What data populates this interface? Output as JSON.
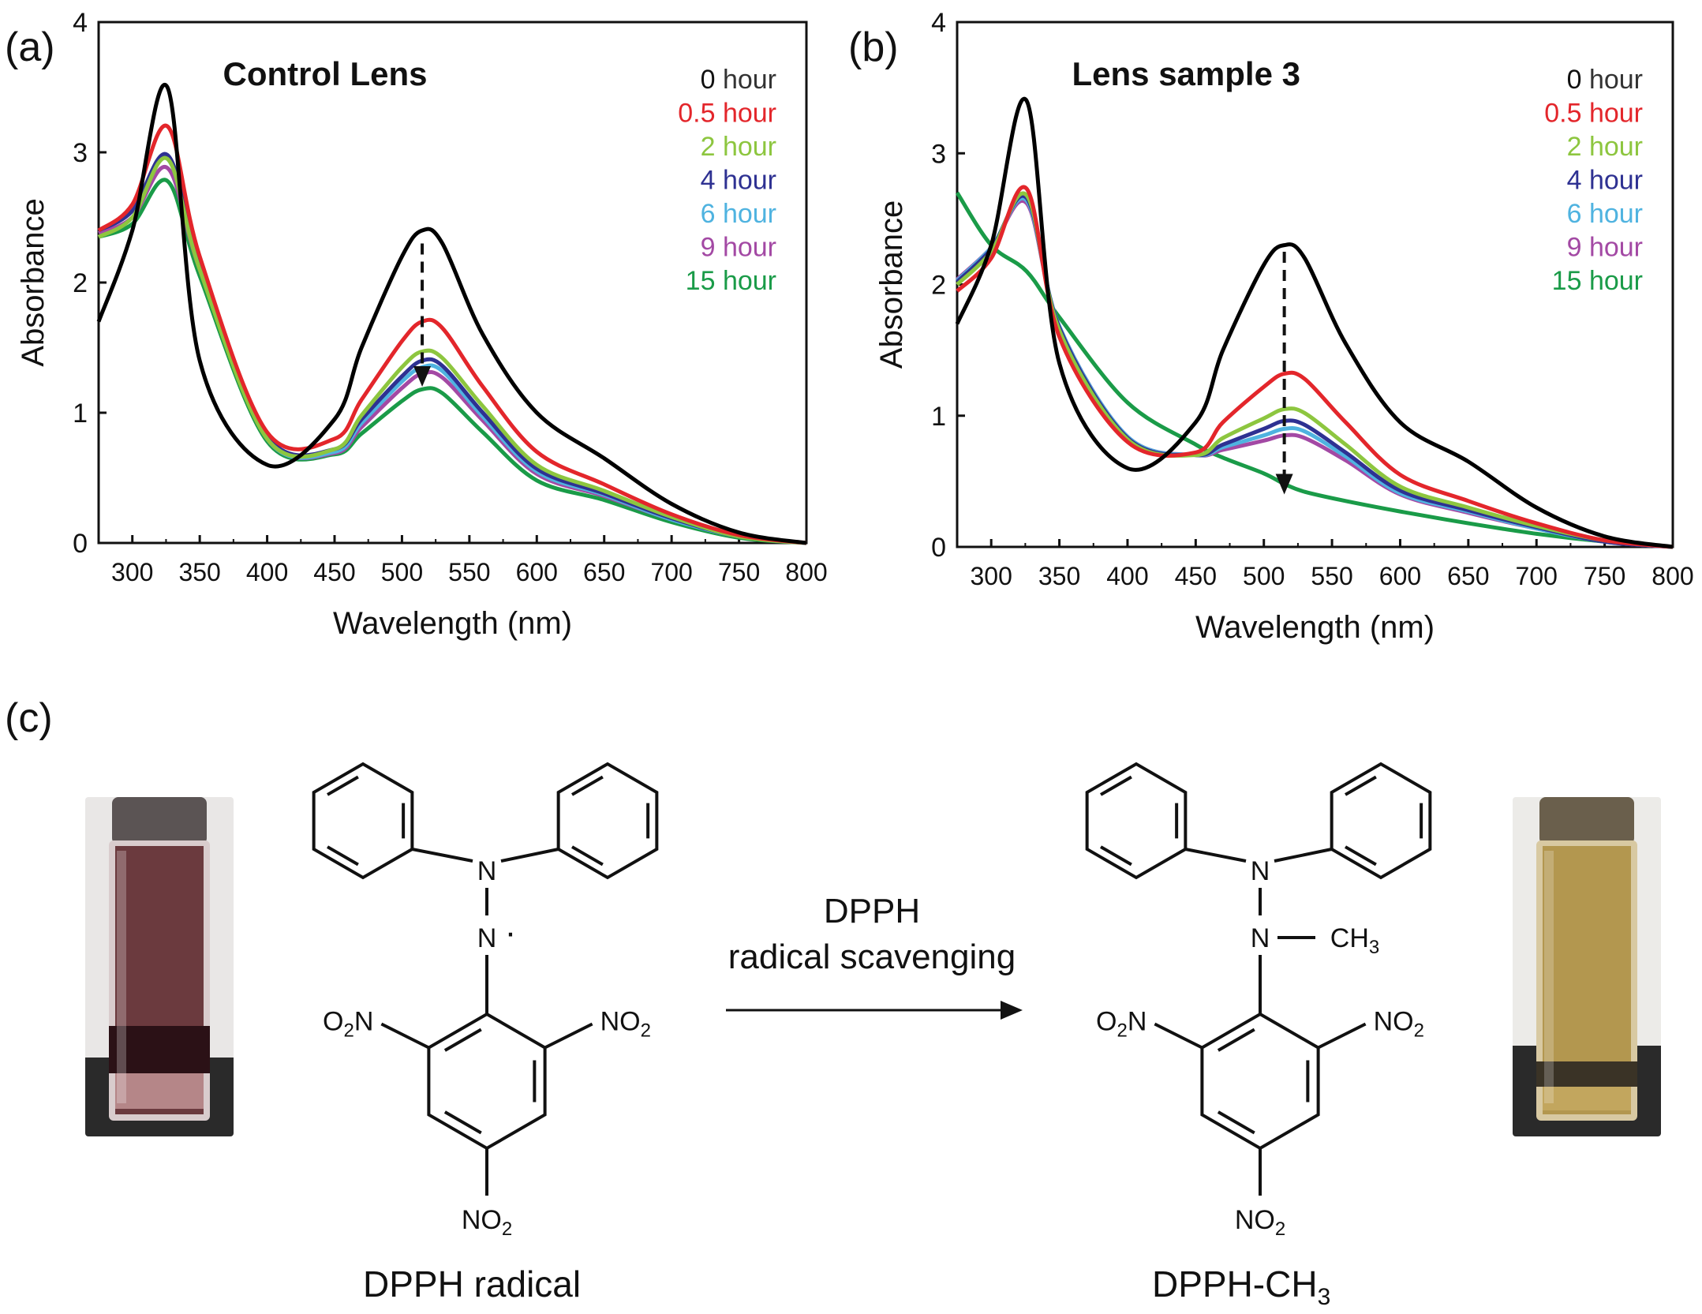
{
  "panel_labels": [
    "(a)",
    "(b)",
    "(c)"
  ],
  "chart_data": [
    {
      "type": "line",
      "title": "Control Lens",
      "xlabel": "Wavelength (nm)",
      "ylabel": "Absorbance",
      "xlim": [
        275,
        800
      ],
      "ylim": [
        0,
        4
      ],
      "xticks": [
        300,
        350,
        400,
        450,
        500,
        550,
        600,
        650,
        700,
        750,
        800
      ],
      "yticks": [
        0,
        1,
        2,
        3,
        4
      ],
      "legend_position": "top-right",
      "grid": false,
      "annotation": "dashed down arrow at 515 nm",
      "arrow": {
        "x": 515,
        "y_from": 2.3,
        "y_to": 1.2
      },
      "x": [
        275,
        300,
        326,
        350,
        400,
        450,
        470,
        500,
        515,
        530,
        560,
        600,
        650,
        700,
        750,
        800
      ],
      "series": [
        {
          "name": "0 hour",
          "color": "#000000",
          "values": [
            1.7,
            2.4,
            3.5,
            1.4,
            0.6,
            0.95,
            1.5,
            2.2,
            2.4,
            2.3,
            1.6,
            1.0,
            0.65,
            0.3,
            0.08,
            0.0
          ]
        },
        {
          "name": "0.5 hour",
          "color": "#e3262b",
          "values": [
            2.4,
            2.6,
            3.2,
            2.2,
            0.85,
            0.8,
            1.1,
            1.55,
            1.7,
            1.65,
            1.2,
            0.7,
            0.45,
            0.22,
            0.06,
            0.0
          ]
        },
        {
          "name": "2 hour",
          "color": "#8dc63f",
          "values": [
            2.35,
            2.5,
            2.95,
            2.1,
            0.8,
            0.72,
            0.98,
            1.35,
            1.47,
            1.42,
            1.05,
            0.6,
            0.4,
            0.2,
            0.05,
            0.0
          ]
        },
        {
          "name": "4 hour",
          "color": "#2e3192",
          "values": [
            2.4,
            2.55,
            2.98,
            2.15,
            0.82,
            0.72,
            0.95,
            1.28,
            1.4,
            1.36,
            1.0,
            0.57,
            0.38,
            0.19,
            0.05,
            0.0
          ]
        },
        {
          "name": "6 hour",
          "color": "#4fb3e0",
          "values": [
            2.4,
            2.55,
            2.95,
            2.12,
            0.8,
            0.7,
            0.92,
            1.24,
            1.35,
            1.32,
            0.97,
            0.55,
            0.37,
            0.18,
            0.05,
            0.0
          ]
        },
        {
          "name": "9 hour",
          "color": "#a349a4",
          "values": [
            2.38,
            2.5,
            2.88,
            2.1,
            0.8,
            0.69,
            0.89,
            1.19,
            1.3,
            1.27,
            0.94,
            0.53,
            0.36,
            0.18,
            0.05,
            0.0
          ]
        },
        {
          "name": "15 hour",
          "color": "#1a9b48",
          "values": [
            2.35,
            2.45,
            2.78,
            2.05,
            0.78,
            0.68,
            0.84,
            1.09,
            1.18,
            1.15,
            0.85,
            0.48,
            0.33,
            0.16,
            0.04,
            0.0
          ]
        }
      ]
    },
    {
      "type": "line",
      "title": "Lens sample 3",
      "xlabel": "Wavelength (nm)",
      "ylabel": "Absorbance",
      "xlim": [
        275,
        800
      ],
      "ylim": [
        0,
        4
      ],
      "xticks": [
        300,
        350,
        400,
        450,
        500,
        550,
        600,
        650,
        700,
        750,
        800
      ],
      "yticks": [
        0,
        1,
        2,
        3,
        4
      ],
      "legend_position": "top-right",
      "grid": false,
      "annotation": "dashed down arrow at 515 nm",
      "arrow": {
        "x": 515,
        "y_from": 2.25,
        "y_to": 0.4
      },
      "x": [
        275,
        300,
        326,
        350,
        400,
        450,
        470,
        500,
        515,
        530,
        560,
        600,
        650,
        700,
        750,
        800
      ],
      "series": [
        {
          "name": "0 hour",
          "color": "#000000",
          "values": [
            1.7,
            2.3,
            3.4,
            1.4,
            0.6,
            0.95,
            1.5,
            2.15,
            2.3,
            2.2,
            1.55,
            0.95,
            0.65,
            0.3,
            0.08,
            0.0
          ]
        },
        {
          "name": "0.5 hour",
          "color": "#e3262b",
          "values": [
            1.95,
            2.2,
            2.73,
            1.6,
            0.8,
            0.72,
            0.95,
            1.22,
            1.32,
            1.28,
            0.95,
            0.55,
            0.35,
            0.18,
            0.05,
            0.0
          ]
        },
        {
          "name": "2 hour",
          "color": "#8dc63f",
          "values": [
            2.0,
            2.25,
            2.68,
            1.65,
            0.82,
            0.7,
            0.83,
            0.98,
            1.05,
            1.02,
            0.78,
            0.46,
            0.3,
            0.16,
            0.05,
            0.0
          ]
        },
        {
          "name": "4 hour",
          "color": "#2e3192",
          "values": [
            2.02,
            2.27,
            2.66,
            1.67,
            0.83,
            0.7,
            0.78,
            0.9,
            0.96,
            0.93,
            0.72,
            0.43,
            0.28,
            0.15,
            0.04,
            0.0
          ]
        },
        {
          "name": "6 hour",
          "color": "#4fb3e0",
          "values": [
            2.03,
            2.28,
            2.64,
            1.68,
            0.84,
            0.7,
            0.76,
            0.85,
            0.9,
            0.88,
            0.69,
            0.41,
            0.27,
            0.14,
            0.04,
            0.0
          ]
        },
        {
          "name": "9 hour",
          "color": "#a349a4",
          "values": [
            2.04,
            2.28,
            2.62,
            1.68,
            0.84,
            0.7,
            0.74,
            0.81,
            0.85,
            0.83,
            0.66,
            0.4,
            0.26,
            0.14,
            0.04,
            0.0
          ]
        },
        {
          "name": "15 hour",
          "color": "#1a9b48",
          "values": [
            2.7,
            2.3,
            2.1,
            1.75,
            1.1,
            0.78,
            0.68,
            0.56,
            0.48,
            0.42,
            0.35,
            0.27,
            0.18,
            0.1,
            0.04,
            0.0
          ]
        }
      ]
    }
  ],
  "reaction": {
    "arrow_label_line1": "DPPH",
    "arrow_label_line2": "radical scavenging",
    "reactant_caption": "DPPH radical",
    "product_caption": "DPPH-CH",
    "product_caption_sub": "3",
    "atom_N": "N",
    "radical_dot": "·",
    "methyl_label": "CH",
    "methyl_sub": "3",
    "nitro_left": "O",
    "nitro_right": "NO",
    "nitro_sub": "2",
    "nitro_N": "N"
  },
  "photos": {
    "left_solution_color": "#6b3a3e",
    "right_solution_color": "#b3974f"
  }
}
